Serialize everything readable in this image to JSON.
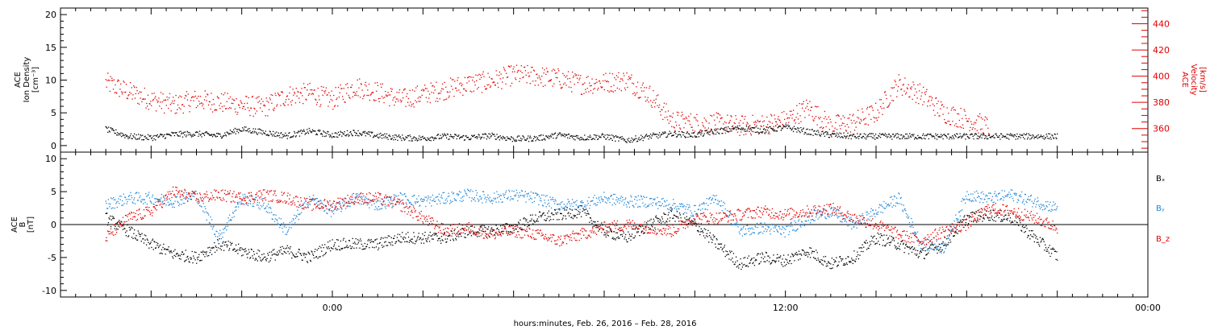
{
  "colors": {
    "black": "#000000",
    "red": "#e00000",
    "blue": "#1f86d8"
  },
  "chart_data": [
    {
      "type": "scatter",
      "panel": "top",
      "ylabel_lines": [
        "ACE",
        "Ion Density",
        "[cm⁻³]"
      ],
      "y2label_lines": [
        "ACE",
        "Velocity",
        "[km/s]"
      ],
      "ylim": [
        -1,
        21
      ],
      "y2lim": [
        342,
        452
      ],
      "yticks": [
        0,
        5,
        10,
        15,
        20
      ],
      "y2ticks": [
        360,
        380,
        400,
        420,
        440
      ],
      "series": [
        {
          "axis": "left",
          "color": "#000000",
          "profile": [
            [
              -30,
              2.5
            ],
            [
              -27,
              1.4
            ],
            [
              -24,
              1.2
            ],
            [
              -21,
              1.7
            ],
            [
              -18,
              1.8
            ],
            [
              -15,
              1.5
            ],
            [
              -12,
              2.5
            ],
            [
              -9,
              2
            ],
            [
              -6,
              1.5
            ],
            [
              -3,
              2.2
            ],
            [
              0,
              1.6
            ],
            [
              3,
              2
            ],
            [
              6,
              1.5
            ],
            [
              9,
              1.2
            ],
            [
              12,
              1.1
            ],
            [
              15,
              1.4
            ],
            [
              18,
              1.2
            ],
            [
              21,
              1.5
            ],
            [
              24,
              1
            ],
            [
              27,
              1.1
            ],
            [
              30,
              1.6
            ],
            [
              33,
              1.2
            ],
            [
              36,
              1.4
            ],
            [
              39,
              0.8
            ],
            [
              42,
              1.4
            ],
            [
              45,
              1.8
            ],
            [
              48,
              1.6
            ],
            [
              51,
              2.2
            ],
            [
              54,
              2.7
            ],
            [
              57,
              2.3
            ],
            [
              60,
              2.8
            ],
            [
              63,
              2.1
            ],
            [
              66,
              1.6
            ],
            [
              69,
              1.4
            ]
          ]
        },
        {
          "axis": "right",
          "color": "#e00000",
          "profile": [
            [
              -30,
              395
            ],
            [
              -27,
              388
            ],
            [
              -24,
              382
            ],
            [
              -21,
              378
            ],
            [
              -18,
              382
            ],
            [
              -15,
              380
            ],
            [
              -12,
              378
            ],
            [
              -9,
              376
            ],
            [
              -6,
              385
            ],
            [
              -3,
              387
            ],
            [
              0,
              382
            ],
            [
              3,
              392
            ],
            [
              6,
              388
            ],
            [
              9,
              382
            ],
            [
              12,
              386
            ],
            [
              15,
              390
            ],
            [
              18,
              394
            ],
            [
              21,
              396
            ],
            [
              24,
              401
            ],
            [
              27,
              400
            ],
            [
              30,
              398
            ],
            [
              33,
              394
            ],
            [
              36,
              395
            ],
            [
              39,
              397
            ],
            [
              42,
              386
            ],
            [
              45,
              366
            ],
            [
              48,
              364
            ],
            [
              51,
              364
            ],
            [
              54,
              362
            ],
            [
              57,
              363
            ],
            [
              60,
              366
            ],
            [
              63,
              376
            ],
            [
              66,
              362
            ],
            [
              69,
              365
            ],
            [
              72,
              372
            ],
            [
              75,
              394
            ],
            [
              78,
              386
            ],
            [
              81,
              372
            ],
            [
              84,
              367
            ],
            [
              87,
              361
            ]
          ]
        }
      ]
    },
    {
      "type": "scatter",
      "panel": "bottom",
      "ylabel_lines": [
        "ACE",
        "B",
        "[nT]"
      ],
      "ylim": [
        -11,
        11
      ],
      "yticks": [
        -10,
        -5,
        0,
        5,
        10
      ],
      "zero_line": true,
      "legend": [
        "Bₓ",
        "Bᵧ",
        "B_z"
      ],
      "series": [
        {
          "name": "Bₓ",
          "color": "#000000",
          "profile": [
            [
              -30,
              1
            ],
            [
              -27,
              -1
            ],
            [
              -24,
              -3
            ],
            [
              -21,
              -4.5
            ],
            [
              -18,
              -5
            ],
            [
              -15,
              -3
            ],
            [
              -12,
              -4
            ],
            [
              -9,
              -5
            ],
            [
              -6,
              -4
            ],
            [
              -3,
              -5
            ],
            [
              0,
              -3
            ],
            [
              3,
              -3
            ],
            [
              6,
              -3
            ],
            [
              9,
              -2
            ],
            [
              12,
              -2
            ],
            [
              15,
              -2
            ],
            [
              18,
              -1
            ],
            [
              21,
              -1
            ],
            [
              24,
              -0.5
            ],
            [
              27,
              1
            ],
            [
              30,
              1.5
            ],
            [
              33,
              2
            ],
            [
              36,
              -1
            ],
            [
              39,
              -2
            ],
            [
              42,
              0
            ],
            [
              45,
              1.5
            ],
            [
              48,
              0
            ],
            [
              51,
              -3
            ],
            [
              54,
              -6
            ],
            [
              57,
              -5
            ],
            [
              60,
              -5.5
            ],
            [
              63,
              -4
            ],
            [
              66,
              -6
            ],
            [
              69,
              -5
            ],
            [
              72,
              -2
            ],
            [
              75,
              -3
            ],
            [
              78,
              -4.5
            ],
            [
              81,
              -3
            ],
            [
              84,
              1
            ],
            [
              87,
              1.5
            ],
            [
              90,
              1
            ],
            [
              93,
              -2
            ],
            [
              96,
              -4.8
            ]
          ]
        },
        {
          "name": "Bᵧ",
          "color": "#1f86d8",
          "profile": [
            [
              -30,
              3
            ],
            [
              -27,
              4
            ],
            [
              -24,
              4
            ],
            [
              -21,
              3.5
            ],
            [
              -18,
              4.5
            ],
            [
              -15,
              -2
            ],
            [
              -12,
              4
            ],
            [
              -9,
              3
            ],
            [
              -6,
              -1
            ],
            [
              -3,
              4
            ],
            [
              0,
              2
            ],
            [
              3,
              4
            ],
            [
              6,
              3
            ],
            [
              9,
              4
            ],
            [
              12,
              3.5
            ],
            [
              15,
              4
            ],
            [
              18,
              4.5
            ],
            [
              21,
              4
            ],
            [
              24,
              4.5
            ],
            [
              27,
              4
            ],
            [
              30,
              3
            ],
            [
              33,
              3
            ],
            [
              36,
              4
            ],
            [
              39,
              3.5
            ],
            [
              42,
              3.5
            ],
            [
              45,
              3
            ],
            [
              48,
              2
            ],
            [
              51,
              4
            ],
            [
              54,
              -1
            ],
            [
              57,
              -0.5
            ],
            [
              60,
              -1
            ],
            [
              63,
              1
            ],
            [
              66,
              2
            ],
            [
              69,
              0
            ],
            [
              72,
              2
            ],
            [
              75,
              4
            ],
            [
              78,
              -3
            ],
            [
              81,
              -3.5
            ],
            [
              84,
              4.5
            ],
            [
              87,
              4
            ],
            [
              90,
              4.5
            ],
            [
              93,
              3.5
            ],
            [
              96,
              2.5
            ]
          ]
        },
        {
          "name": "B_z",
          "color": "#e00000",
          "profile": [
            [
              -30,
              -2
            ],
            [
              -27,
              1
            ],
            [
              -24,
              2
            ],
            [
              -21,
              5
            ],
            [
              -18,
              4
            ],
            [
              -15,
              4.5
            ],
            [
              -12,
              4
            ],
            [
              -9,
              4.5
            ],
            [
              -6,
              4
            ],
            [
              -3,
              3
            ],
            [
              0,
              3
            ],
            [
              3,
              4
            ],
            [
              6,
              4
            ],
            [
              9,
              3
            ],
            [
              12,
              1
            ],
            [
              15,
              -1
            ],
            [
              18,
              -0.5
            ],
            [
              21,
              -1.5
            ],
            [
              24,
              -1
            ],
            [
              27,
              -1.5
            ],
            [
              30,
              -2.5
            ],
            [
              33,
              -1.5
            ],
            [
              36,
              -0.5
            ],
            [
              39,
              0
            ],
            [
              42,
              -0.5
            ],
            [
              45,
              -1
            ],
            [
              48,
              1
            ],
            [
              51,
              1
            ],
            [
              54,
              1.5
            ],
            [
              57,
              2
            ],
            [
              60,
              1.5
            ],
            [
              63,
              2
            ],
            [
              66,
              2.5
            ],
            [
              69,
              1
            ],
            [
              72,
              0
            ],
            [
              75,
              -1.5
            ],
            [
              78,
              -2.5
            ],
            [
              81,
              -1
            ],
            [
              84,
              0
            ],
            [
              87,
              2.5
            ],
            [
              90,
              2
            ],
            [
              93,
              1
            ],
            [
              96,
              -0.5
            ]
          ]
        }
      ]
    }
  ],
  "x_axis": {
    "xlim": [
      -36,
      108
    ],
    "label": "hours:minutes, Feb. 26, 2016 – Feb. 28, 2016",
    "labeled_ticks": [
      {
        "x": 0,
        "label": "0:00"
      },
      {
        "x": 60,
        "label": "12:00"
      },
      {
        "x": 108,
        "label": "00:00"
      }
    ],
    "minor_tick_step": 12,
    "data_end_x": 96
  }
}
